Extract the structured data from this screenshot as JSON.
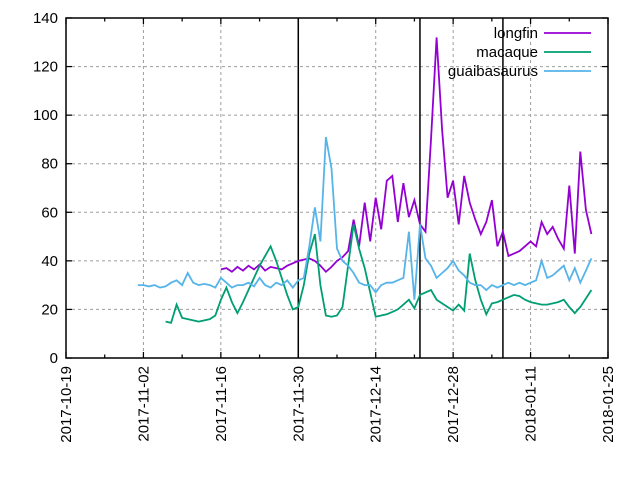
{
  "figure": {
    "background": "#ffffff",
    "text_color": "#000000"
  },
  "chart_data": {
    "type": "line",
    "title": "",
    "xlabel": "",
    "ylabel": "",
    "x_axis": {
      "scale": "time",
      "range": [
        "2017-10-19",
        "2018-01-25"
      ],
      "tick_interval_days": 14,
      "minor_tick_interval_days": 7,
      "tick_labels": [
        "2017-10-19",
        "2017-11-02",
        "2017-11-16",
        "2017-11-30",
        "2017-12-14",
        "2017-12-28",
        "2018-01-11",
        "2018-01-25"
      ],
      "label_rotation_deg": -90
    },
    "y_axis": {
      "range": [
        0,
        140
      ],
      "tick_interval": 20,
      "tick_labels": [
        "0",
        "20",
        "40",
        "60",
        "80",
        "100",
        "120",
        "140"
      ]
    },
    "grid": {
      "show": true,
      "color": "#9e9e9e",
      "style": "dashed"
    },
    "border_color": "#000000",
    "event_lines": {
      "color": "#000000",
      "dates": [
        "2017-11-30",
        "2017-12-22",
        "2018-01-06"
      ]
    },
    "legend": {
      "position": "top-right-inside",
      "entries": [
        {
          "label": "longfin",
          "color": "#9400d3"
        },
        {
          "label": "macaque",
          "color": "#009e73"
        },
        {
          "label": "guaibasaurus",
          "color": "#56b4e9"
        }
      ]
    },
    "series": [
      {
        "name": "longfin",
        "color": "#9400d3",
        "start_date": "2017-11-16",
        "interval_days": 1,
        "values": [
          36.5,
          37,
          35.5,
          37.5,
          36,
          38,
          36.5,
          38.5,
          36,
          37.5,
          37,
          36.5,
          38,
          39,
          40,
          40.5,
          41,
          40,
          38,
          35.5,
          37.5,
          40,
          41.5,
          44,
          57,
          46,
          64,
          48,
          66,
          53,
          73,
          75,
          56,
          72,
          58,
          65,
          55,
          52,
          90,
          132,
          94,
          66,
          73,
          55,
          75,
          64,
          57,
          51,
          56,
          65,
          46,
          52,
          42,
          43,
          44,
          46,
          48,
          46,
          56,
          51,
          54,
          49,
          45,
          71,
          43,
          85,
          61,
          51
        ]
      },
      {
        "name": "macaque",
        "color": "#009e73",
        "start_date": "2017-11-06",
        "interval_days": 1,
        "values": [
          15,
          14.5,
          22,
          16.5,
          16,
          15.5,
          15,
          15.5,
          16,
          17.5,
          24,
          29,
          23,
          18.5,
          23,
          28,
          33,
          38,
          42,
          46,
          40,
          33,
          26,
          20,
          21,
          30,
          43,
          51,
          30,
          17.5,
          17,
          17.5,
          21,
          38,
          55,
          45,
          37,
          27,
          17,
          17.5,
          18,
          19,
          20,
          22,
          24,
          20.5,
          26,
          27,
          28,
          24,
          22.5,
          21,
          19.5,
          22,
          19.5,
          43,
          32,
          24,
          18,
          22.5,
          23,
          24,
          25,
          26,
          25.5,
          24,
          23,
          22.5,
          22,
          22,
          22.5,
          23,
          24,
          21,
          18.5,
          21,
          24.5,
          28
        ]
      },
      {
        "name": "guaibasaurus",
        "color": "#56b4e9",
        "start_date": "2017-11-01",
        "interval_days": 1,
        "values": [
          30,
          30,
          29.5,
          30,
          29,
          29.5,
          31,
          32,
          30,
          35,
          31,
          30,
          30.5,
          30,
          29,
          33,
          31,
          29,
          30,
          30,
          31,
          29.5,
          33,
          30,
          29,
          31,
          30,
          32,
          29,
          32,
          33,
          46,
          62,
          48,
          91,
          78,
          45,
          40,
          38,
          35,
          31,
          30,
          30,
          27,
          30,
          31,
          31,
          32,
          33,
          52,
          24,
          55,
          41,
          38,
          33,
          35,
          37,
          40,
          36,
          34,
          31,
          30,
          30,
          28,
          30,
          29,
          30,
          31,
          30,
          31,
          30,
          31,
          32,
          40,
          33,
          34,
          36,
          38,
          32,
          37,
          31,
          36,
          41
        ]
      }
    ]
  }
}
